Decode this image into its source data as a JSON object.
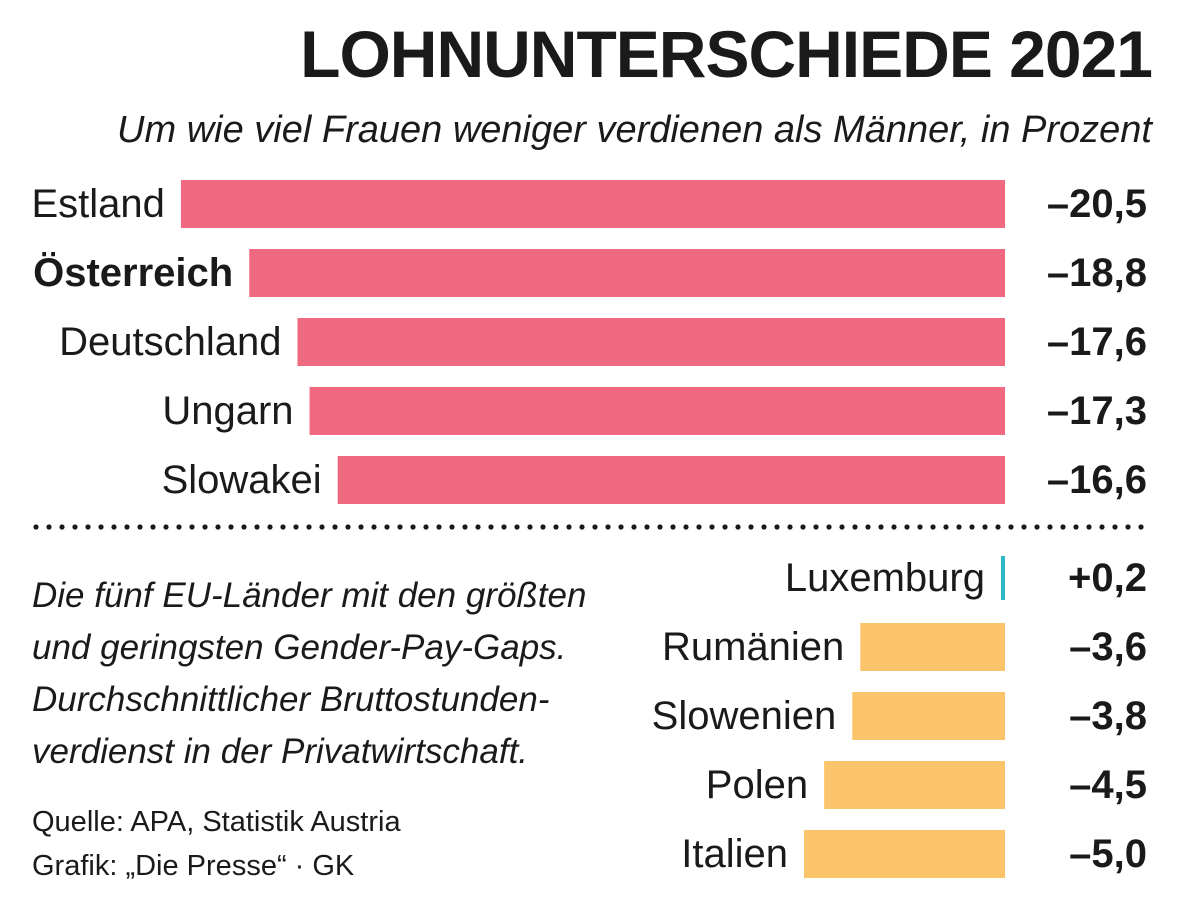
{
  "chart_data": {
    "type": "bar",
    "orientation": "horizontal",
    "title": "LOHNUNTERSCHIEDE 2021",
    "subtitle": "Um wie viel Frauen weniger verdienen als Männer, in Prozent",
    "groups": [
      {
        "color": "#ef6a80",
        "items": [
          {
            "country": "Estland",
            "value": -20.5,
            "label": "–20,5",
            "highlight": false
          },
          {
            "country": "Österreich",
            "value": -18.8,
            "label": "–18,8",
            "highlight": true
          },
          {
            "country": "Deutschland",
            "value": -17.6,
            "label": "–17,6",
            "highlight": false
          },
          {
            "country": "Ungarn",
            "value": -17.3,
            "label": "–17,3",
            "highlight": false
          },
          {
            "country": "Slowakei",
            "value": -16.6,
            "label": "–16,6",
            "highlight": false
          }
        ]
      },
      {
        "color": "#fcc46a",
        "items": [
          {
            "country": "Luxemburg",
            "value": 0.2,
            "label": "+0,2",
            "highlight": false,
            "color": "#2bbac6"
          },
          {
            "country": "Rumänien",
            "value": -3.6,
            "label": "–3,6",
            "highlight": false
          },
          {
            "country": "Slowenien",
            "value": -3.8,
            "label": "–3,8",
            "highlight": false
          },
          {
            "country": "Polen",
            "value": -4.5,
            "label": "–4,5",
            "highlight": false
          },
          {
            "country": "Italien",
            "value": -5.0,
            "label": "–5,0",
            "highlight": false
          }
        ]
      }
    ],
    "grid": false,
    "legend": "none"
  },
  "note": "Die fünf EU-Länder mit den größten und geringsten Gender-Pay-Gaps. Durchschnittlicher Bruttostunden-verdienst in der Privatwirtschaft.",
  "source": {
    "line1": "Quelle: APA, Statistik Austria",
    "line2": "Grafik: „Die Presse“ · GK"
  }
}
